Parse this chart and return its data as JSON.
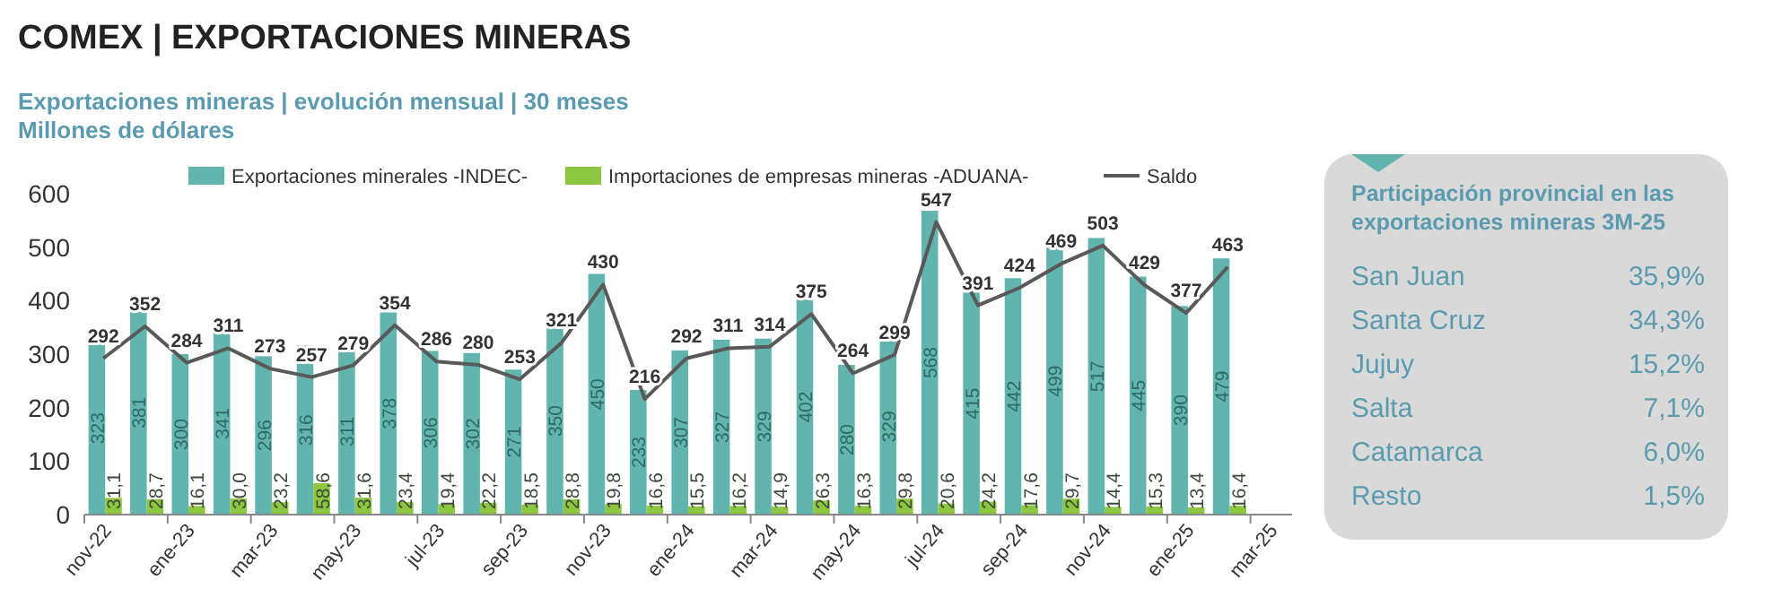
{
  "chart_data": [
    {
      "type": "bar",
      "title": "COMEX | EXPORTACIONES MINERAS",
      "subtitle": "Exportaciones mineras | evolución mensual | 30 meses",
      "ylabel": "Millones de dólares",
      "categories": [
        "nov-22",
        null,
        "ene-23",
        null,
        "mar-23",
        null,
        "may-23",
        null,
        "jul-23",
        null,
        "sep-23",
        null,
        "nov-23",
        null,
        "ene-24",
        null,
        "mar-24",
        null,
        "may-24",
        null,
        "jul-24",
        null,
        "sep-24",
        null,
        "nov-24",
        null,
        "ene-25",
        null,
        "mar-25"
      ],
      "series": [
        {
          "name": "Exportaciones minerales -INDEC-",
          "type": "bar",
          "color": "#62b5ae",
          "values": [
            323,
            381,
            300,
            341,
            296,
            316,
            311,
            378,
            306,
            302,
            271,
            350,
            450,
            233,
            307,
            327,
            329,
            402,
            280,
            329,
            568,
            415,
            442,
            499,
            517,
            445,
            390,
            479,
            null
          ]
        },
        {
          "name": "Importaciones de empresas mineras -ADUANA-",
          "type": "bar",
          "color": "#8dc63f",
          "values": [
            31.1,
            28.7,
            16.1,
            30.0,
            23.2,
            58.6,
            31.6,
            23.4,
            19.4,
            22.2,
            18.5,
            28.8,
            19.8,
            16.6,
            15.5,
            16.2,
            14.9,
            26.3,
            16.3,
            29.8,
            20.6,
            24.2,
            17.6,
            29.7,
            14.4,
            15.3,
            13.4,
            16.4,
            null
          ],
          "value_labels": [
            "31,1",
            "28,7",
            "16,1",
            "30,0",
            "23,2",
            "58,6",
            "31,6",
            "23,4",
            "19,4",
            "22,2",
            "18,5",
            "28,8",
            "19,8",
            "16,6",
            "15,5",
            "16,2",
            "14,9",
            "26,3",
            "16,3",
            "29,8",
            "20,6",
            "24,2",
            "17,6",
            "29,7",
            "14,4",
            "15,3",
            "13,4",
            "16,4",
            null
          ]
        },
        {
          "name": "Saldo",
          "type": "line",
          "color": "#595959",
          "values": [
            292,
            352,
            284,
            311,
            273,
            257,
            279,
            354,
            286,
            280,
            253,
            321,
            430,
            216,
            292,
            311,
            314,
            375,
            264,
            299,
            547,
            391,
            424,
            469,
            503,
            429,
            377,
            463,
            null
          ]
        }
      ],
      "ylim": [
        0,
        600
      ],
      "yticks": [
        0,
        100,
        200,
        300,
        400,
        500,
        600
      ],
      "grid": false,
      "legend": "top",
      "data_labels": true,
      "marker": "none"
    },
    {
      "type": "other",
      "title": "Participación provincial en las exportaciones mineras 3M-25",
      "categories": [
        "San Juan",
        "Santa Cruz",
        "Jujuy",
        "Salta",
        "Catamarca",
        "Resto"
      ],
      "value_labels": [
        "35,9%",
        "34,3%",
        "15,2%",
        "7,1%",
        "6,0%",
        "1,5%"
      ]
    }
  ]
}
